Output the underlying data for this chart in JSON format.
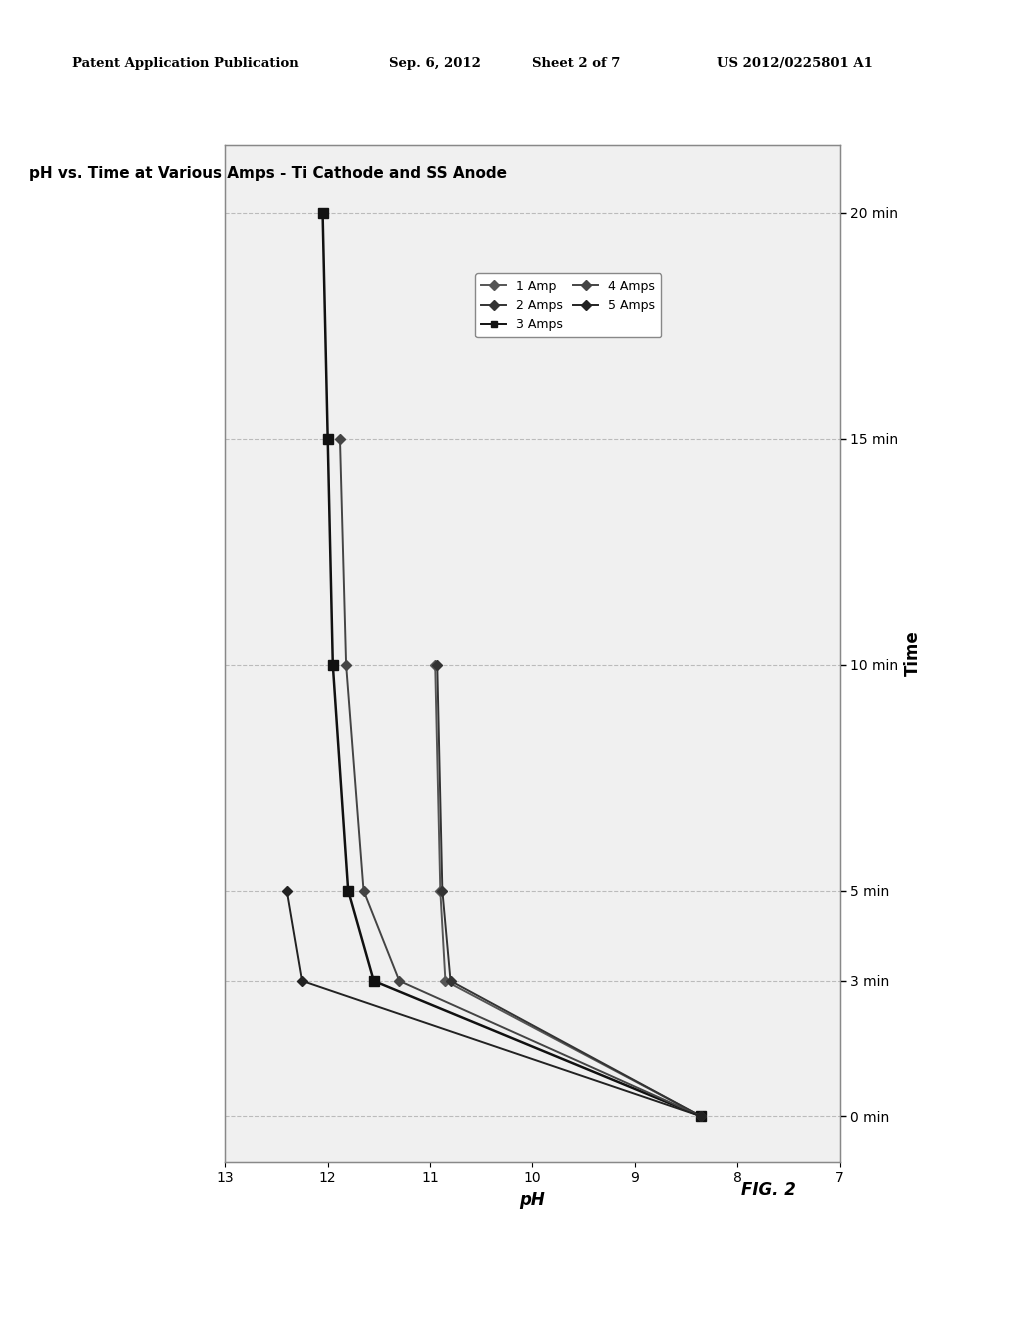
{
  "title": "pH vs. Time at Various Amps - Ti Cathode and SS Anode",
  "xlabel": "pH",
  "ylabel_right": "Time",
  "fig_label": "FIG. 2",
  "patent_header": "Patent Application Publication",
  "patent_date": "Sep. 6, 2012",
  "patent_sheet": "Sheet 2 of 7",
  "patent_number": "US 2012/0225801 A1",
  "time_labels": [
    "0 min",
    "3 min",
    "5 min",
    "10 min",
    "15 min",
    "20 min"
  ],
  "time_values": [
    0,
    3,
    5,
    10,
    15,
    20
  ],
  "ph_xlim": [
    7,
    13
  ],
  "ph_xticks": [
    7,
    8,
    9,
    10,
    11,
    12,
    13
  ],
  "series": [
    {
      "label": "1 Amp",
      "color": "#555555",
      "marker": "D",
      "markersize": 5,
      "linewidth": 1.4,
      "ph_values": [
        8.35,
        10.85,
        10.9,
        10.95,
        null,
        null
      ]
    },
    {
      "label": "2 Amps",
      "color": "#333333",
      "marker": "D",
      "markersize": 5,
      "linewidth": 1.4,
      "ph_values": [
        8.35,
        10.8,
        10.88,
        10.93,
        null,
        null
      ]
    },
    {
      "label": "3 Amps",
      "color": "#111111",
      "marker": "s",
      "markersize": 7,
      "linewidth": 1.8,
      "ph_values": [
        8.35,
        11.55,
        11.8,
        11.95,
        12.0,
        12.05
      ]
    },
    {
      "label": "4 Amps",
      "color": "#444444",
      "marker": "D",
      "markersize": 5,
      "linewidth": 1.4,
      "ph_values": [
        8.35,
        11.3,
        11.65,
        11.82,
        11.88,
        null
      ]
    },
    {
      "label": "5 Amps",
      "color": "#222222",
      "marker": "D",
      "markersize": 5,
      "linewidth": 1.4,
      "ph_values": [
        8.35,
        12.25,
        12.4,
        null,
        null,
        null
      ]
    }
  ],
  "background_color": "#ffffff",
  "plot_bg_color": "#f0f0f0",
  "grid_color": "#bbbbbb",
  "border_color": "#888888",
  "title_fontsize": 11,
  "legend_fontsize": 9,
  "tick_fontsize": 10
}
